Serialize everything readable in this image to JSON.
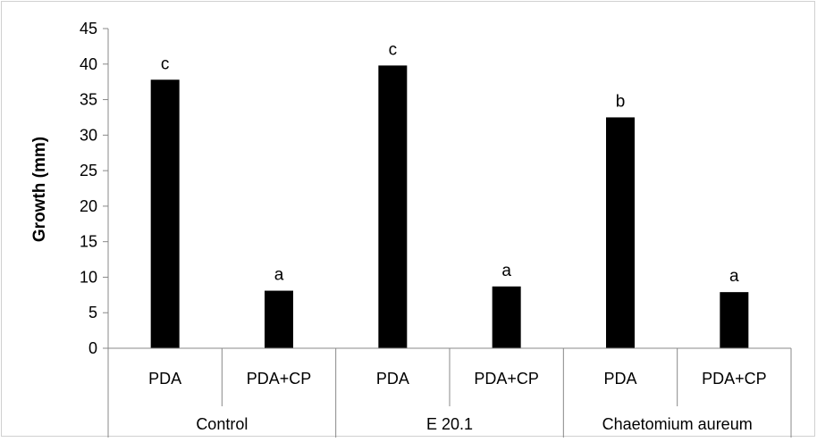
{
  "chart_data": {
    "type": "bar",
    "title": "",
    "ylabel": "Growth (mm)",
    "xlabel": "",
    "ylim": [
      0,
      45
    ],
    "yticks": [
      0,
      5,
      10,
      15,
      20,
      25,
      30,
      35,
      40,
      45
    ],
    "grid": false,
    "legend": "none",
    "bar_color": "#000000",
    "categories": [
      "PDA",
      "PDA+CP",
      "PDA",
      "PDA+CP",
      "PDA",
      "PDA+CP"
    ],
    "groups": [
      {
        "label": "Control",
        "categories": [
          "PDA",
          "PDA+CP"
        ]
      },
      {
        "label": "E 20.1",
        "categories": [
          "PDA",
          "PDA+CP"
        ]
      },
      {
        "label": "Chaetomium aureum",
        "categories": [
          "PDA",
          "PDA+CP"
        ]
      }
    ],
    "values": [
      37.8,
      8.1,
      39.8,
      8.7,
      32.5,
      7.9
    ],
    "data_labels": [
      "c",
      "a",
      "c",
      "a",
      "b",
      "a"
    ]
  }
}
